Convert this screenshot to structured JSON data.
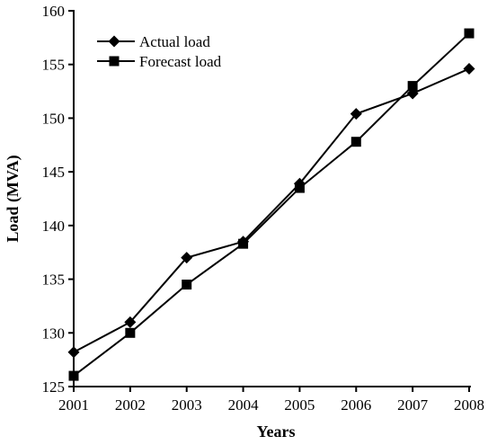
{
  "chart_data": {
    "type": "line",
    "title": "",
    "xlabel": "Years",
    "ylabel": "Load (MVA)",
    "categories": [
      "2001",
      "2002",
      "2003",
      "2004",
      "2005",
      "2006",
      "2007",
      "2008"
    ],
    "ylim": [
      125,
      160
    ],
    "yticks": [
      125,
      130,
      135,
      140,
      145,
      150,
      155,
      160
    ],
    "grid": false,
    "legend_position": "top-left",
    "series": [
      {
        "name": "Actual load",
        "marker": "diamond",
        "color": "#000000",
        "values": [
          128.2,
          131.0,
          137.0,
          138.5,
          143.9,
          150.4,
          152.3,
          154.6
        ]
      },
      {
        "name": "Forecast load",
        "marker": "square",
        "color": "#000000",
        "values": [
          126.0,
          130.0,
          134.5,
          138.3,
          143.5,
          147.8,
          153.0,
          157.9
        ]
      }
    ]
  }
}
